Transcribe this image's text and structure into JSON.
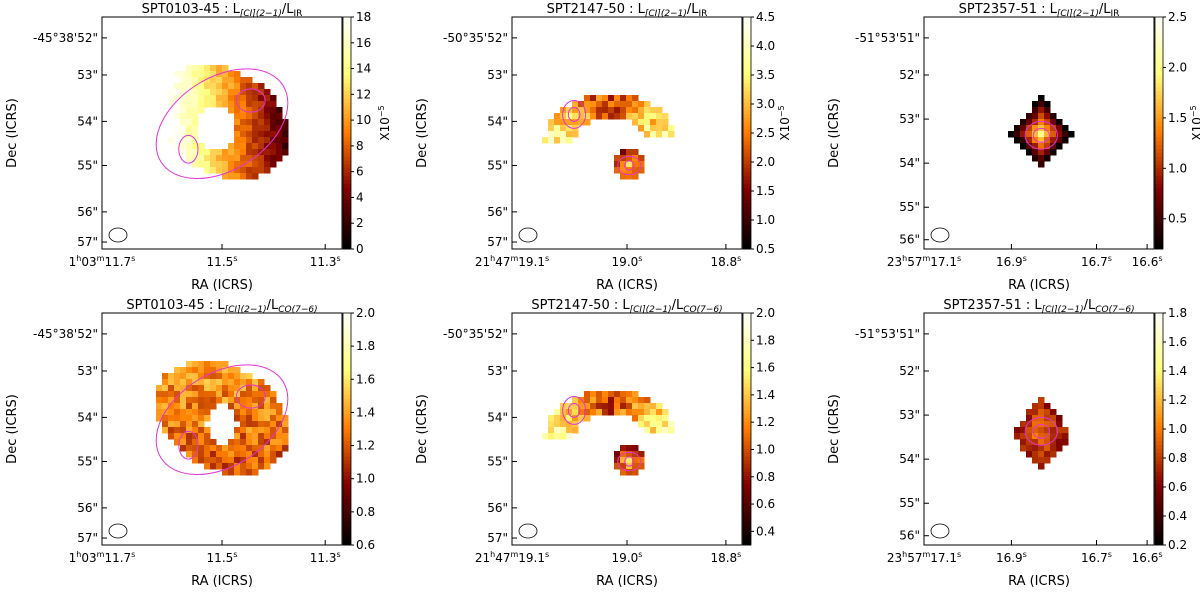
{
  "figure": {
    "description_free": true,
    "colormap": "afmhot",
    "contour_color": "#e632d8",
    "beam_label": "beam"
  },
  "chart_data": [
    {
      "type": "heatmap",
      "source": "SPT0103-45",
      "title": "SPT0103-45 : L[CI](2−1)/LIR",
      "title_parts": {
        "prefix": "SPT0103-45 : L",
        "sub1": "[CI](2−1)",
        "mid": "/L",
        "sub2": "IR"
      },
      "xlabel": "RA (ICRS)",
      "ylabel": "Dec (ICRS)",
      "x_ticks": [
        {
          "main": "1",
          "sup": "h",
          "rest": "03",
          "sup2": "m",
          "rest2": "11.7",
          "sup3": "s"
        },
        {
          "main": "11.5",
          "sup": "s"
        },
        {
          "main": "11.3",
          "sup": "s"
        }
      ],
      "y_ticks": [
        "-45°38'52\"",
        "53\"",
        "54\"",
        "55\"",
        "56\"",
        "57\""
      ],
      "colorbar": {
        "min": 0,
        "max": 18,
        "ticks": [
          0,
          2,
          4,
          6,
          8,
          10,
          12,
          14,
          16,
          18
        ],
        "label": "X10",
        "label_exp": "−5"
      },
      "shape": "ring",
      "hot_region": "left"
    },
    {
      "type": "heatmap",
      "source": "SPT2147-50",
      "title": "SPT2147-50 : L[CI](2−1)/LIR",
      "title_parts": {
        "prefix": "SPT2147-50 : L",
        "sub1": "[CI](2−1)",
        "mid": "/L",
        "sub2": "IR"
      },
      "xlabel": "RA (ICRS)",
      "ylabel": "Dec (ICRS)",
      "x_ticks": [
        {
          "main": "21",
          "sup": "h",
          "rest": "47",
          "sup2": "m",
          "rest2": "19.1",
          "sup3": "s"
        },
        {
          "main": "19.0",
          "sup": "s"
        },
        {
          "main": "18.8",
          "sup": "s"
        }
      ],
      "y_ticks": [
        "-50°35'52\"",
        "53\"",
        "54\"",
        "55\"",
        "56\"",
        "57\""
      ],
      "colorbar": {
        "min": 0.5,
        "max": 4.5,
        "ticks": [
          0.5,
          1.0,
          1.5,
          2.0,
          2.5,
          3.0,
          3.5,
          4.0,
          4.5
        ],
        "label": "X10",
        "label_exp": "−5"
      },
      "shape": "arc"
    },
    {
      "type": "heatmap",
      "source": "SPT2357-51",
      "title": "SPT2357-51 : L[CI](2−1)/LIR",
      "title_parts": {
        "prefix": "SPT2357-51 : L",
        "sub1": "[CI](2−1)",
        "mid": "/L",
        "sub2": "IR"
      },
      "xlabel": "RA (ICRS)",
      "ylabel": "Dec (ICRS)",
      "x_ticks": [
        {
          "main": "23",
          "sup": "h",
          "rest": "57",
          "sup2": "m",
          "rest2": "17.1",
          "sup3": "s"
        },
        {
          "main": "16.9",
          "sup": "s"
        },
        {
          "main": "16.7",
          "sup": "s"
        },
        {
          "main": "16.6",
          "sup": "s"
        }
      ],
      "y_ticks": [
        "-51°53'51\"",
        "52\"",
        "53\"",
        "54\"",
        "55\"",
        "56\""
      ],
      "colorbar": {
        "min": 0.2,
        "max": 2.5,
        "ticks": [
          0.5,
          1.0,
          1.5,
          2.0,
          2.5
        ],
        "label": "X10",
        "label_exp": "−5"
      },
      "shape": "blob"
    },
    {
      "type": "heatmap",
      "source": "SPT0103-45",
      "title": "SPT0103-45 : L[CI](2−1)/LCO(7−6)",
      "title_parts": {
        "prefix": "SPT0103-45 : L",
        "sub1": "[CI](2−1)",
        "mid": "/L",
        "sub2": "CO(7−6)"
      },
      "xlabel": "RA (ICRS)",
      "ylabel": "Dec (ICRS)",
      "x_ticks": [
        {
          "main": "1",
          "sup": "h",
          "rest": "03",
          "sup2": "m",
          "rest2": "11.7",
          "sup3": "s"
        },
        {
          "main": "11.5",
          "sup": "s"
        },
        {
          "main": "11.3",
          "sup": "s"
        }
      ],
      "y_ticks": [
        "-45°38'52\"",
        "53\"",
        "54\"",
        "55\"",
        "56\"",
        "57\""
      ],
      "colorbar": {
        "min": 0.6,
        "max": 2.0,
        "ticks": [
          0.6,
          0.8,
          1.0,
          1.2,
          1.4,
          1.6,
          1.8,
          2.0
        ]
      },
      "shape": "ring"
    },
    {
      "type": "heatmap",
      "source": "SPT2147-50",
      "title": "SPT2147-50 : L[CI](2−1)/LCO(7−6)",
      "title_parts": {
        "prefix": "SPT2147-50 :  L",
        "sub1": "[CI](2−1)",
        "mid": "/L",
        "sub2": "CO(7−6)"
      },
      "xlabel": "RA (ICRS)",
      "ylabel": "Dec (ICRS)",
      "x_ticks": [
        {
          "main": "21",
          "sup": "h",
          "rest": "47",
          "sup2": "m",
          "rest2": "19.1",
          "sup3": "s"
        },
        {
          "main": "19.0",
          "sup": "s"
        },
        {
          "main": "18.8",
          "sup": "s"
        }
      ],
      "y_ticks": [
        "-50°35'52\"",
        "53\"",
        "54\"",
        "55\"",
        "56\"",
        "57\""
      ],
      "colorbar": {
        "min": 0.3,
        "max": 2.0,
        "ticks": [
          0.4,
          0.6,
          0.8,
          1.0,
          1.2,
          1.4,
          1.6,
          1.8,
          2.0
        ]
      },
      "shape": "arc"
    },
    {
      "type": "heatmap",
      "source": "SPT2357-51",
      "title": "SPT2357-51 : L[CI](2−1)/LCO(7−6)",
      "title_parts": {
        "prefix": "SPT2357-51 :  L",
        "sub1": "[CI](2−1)",
        "mid": "/L",
        "sub2": "CO(7−6)"
      },
      "xlabel": "RA (ICRS)",
      "ylabel": "Dec (ICRS)",
      "x_ticks": [
        {
          "main": "23",
          "sup": "h",
          "rest": "57",
          "sup2": "m",
          "rest2": "17.1",
          "sup3": "s"
        },
        {
          "main": "16.9",
          "sup": "s"
        },
        {
          "main": "16.7",
          "sup": "s"
        },
        {
          "main": "16.6",
          "sup": "s"
        }
      ],
      "y_ticks": [
        "-51°53'51\"",
        "52\"",
        "53\"",
        "54\"",
        "55\"",
        "56\""
      ],
      "colorbar": {
        "min": 0.2,
        "max": 1.8,
        "ticks": [
          0.2,
          0.4,
          0.6,
          0.8,
          1.0,
          1.2,
          1.4,
          1.6,
          1.8
        ]
      },
      "shape": "blob"
    }
  ]
}
